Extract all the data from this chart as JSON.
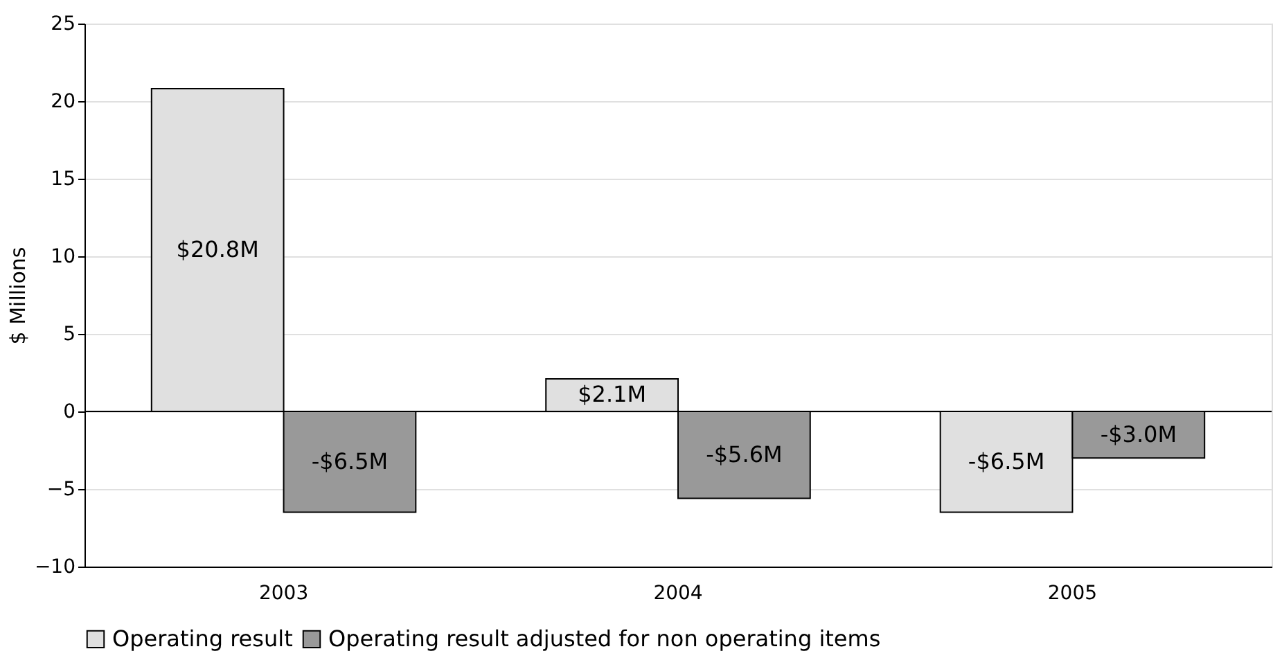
{
  "chart_data": {
    "type": "bar",
    "ylabel": "$ Millions",
    "categories": [
      "2003",
      "2004",
      "2005"
    ],
    "series": [
      {
        "name": "Operating result",
        "color": "#e0e0e0",
        "values": [
          20.8,
          2.1,
          -6.5
        ],
        "value_labels": [
          "$20.8M",
          "$2.1M",
          "-$6.5M"
        ]
      },
      {
        "name": "Operating result adjusted for non operating items",
        "color": "#999999",
        "values": [
          -6.5,
          -5.6,
          -3.0
        ],
        "value_labels": [
          "-$6.5M",
          "-$5.6M",
          "-$3.0M"
        ]
      }
    ],
    "ylim": [
      -10,
      25
    ],
    "yticks": [
      -10,
      -5,
      0,
      5,
      10,
      15,
      20,
      25
    ],
    "grid": "y",
    "legend": "bottom"
  }
}
